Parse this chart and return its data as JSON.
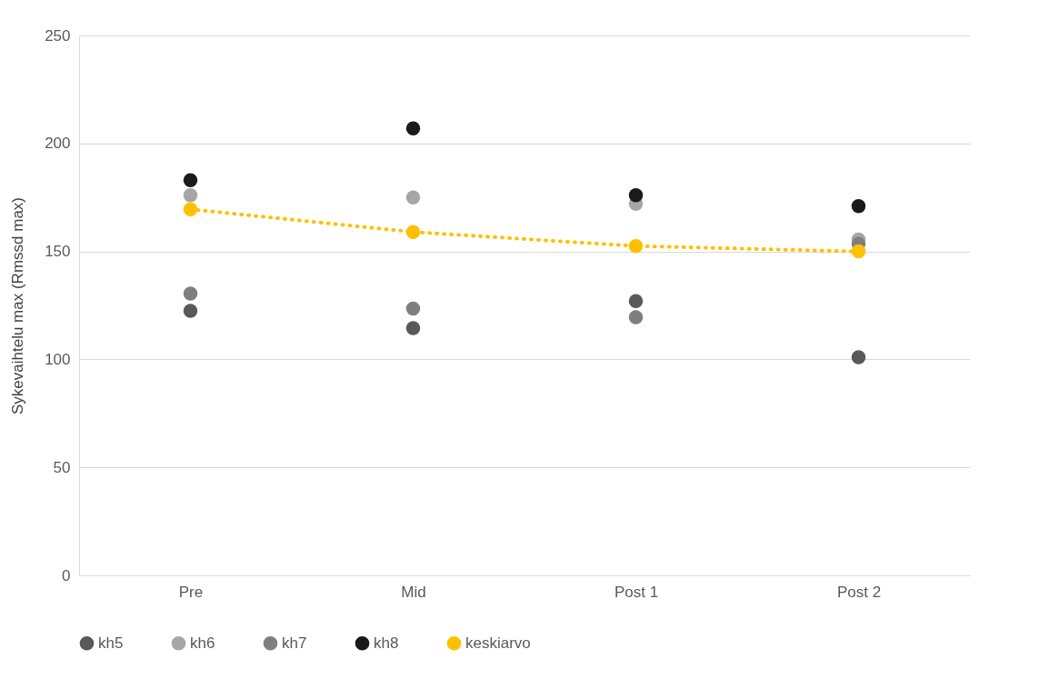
{
  "chart_data": {
    "type": "scatter",
    "ylabel": "Sykevaihtelu max (Rmssd max)",
    "categories": [
      "Pre",
      "Mid",
      "Post 1",
      "Post 2"
    ],
    "ylim": [
      0,
      250
    ],
    "yticks": [
      0,
      50,
      100,
      150,
      200,
      250
    ],
    "grid": "y",
    "legend": "bottom",
    "marker": "circle",
    "series": [
      {
        "name": "kh5",
        "color": "#595959",
        "values": [
          122.5,
          114.5,
          127,
          101
        ]
      },
      {
        "name": "kh6",
        "color": "#a6a6a6",
        "values": [
          176,
          175,
          172,
          155.5
        ]
      },
      {
        "name": "kh7",
        "color": "#7f7f7f",
        "values": [
          130.5,
          123.5,
          119.5,
          153.5
        ]
      },
      {
        "name": "kh8",
        "color": "#1a1a1a",
        "values": [
          183,
          207,
          176,
          171
        ]
      },
      {
        "name": "keskiarvo",
        "type": "line",
        "line_style": "dotted",
        "color": "#ffc000",
        "values": [
          169.5,
          159,
          152.5,
          150
        ]
      }
    ]
  }
}
